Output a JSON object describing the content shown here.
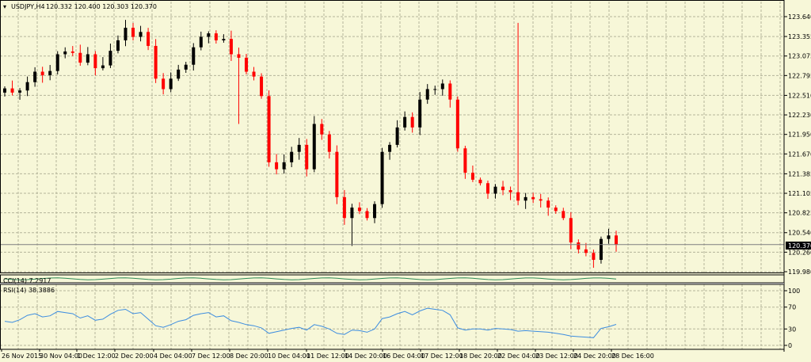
{
  "colors": {
    "background": "#f7f7d8",
    "grid": "#b5b59a",
    "axis": "#000000",
    "bull": "#000000",
    "bear": "#ff0000",
    "wick": "#000000",
    "rsi_line": "#3d8de0",
    "cci_line": "#2e8b57",
    "price_line": "#7f7f7f",
    "price_label_bg": "#000000",
    "price_label_fg": "#ffffff"
  },
  "header": {
    "title": "USDJPY,H4",
    "ohlc": "120.332 120.400 120.303 120.370"
  },
  "price_axis": {
    "ticks": [
      "123.640",
      "123.355",
      "123.075",
      "122.795",
      "122.510",
      "122.230",
      "121.950",
      "121.670",
      "121.385",
      "121.105",
      "120.825",
      "120.540",
      "120.260",
      "119.980"
    ],
    "current_price_label": "120.370"
  },
  "cci_panel": {
    "label": "CCI(14) 7.2917",
    "scale_labels": [
      "",
      ""
    ]
  },
  "rsi_panel": {
    "label": "RSI(14) 38.3886",
    "ticks": [
      "100",
      "70",
      "30",
      "0"
    ]
  },
  "time_axis": {
    "labels": [
      "26 Nov 2015",
      "30 Nov 04:00",
      "1 Dec 12:00",
      "2 Dec 20:00",
      "4 Dec 04:00",
      "7 Dec 12:00",
      "8 Dec 20:00",
      "10 Dec 04:00",
      "11 Dec 12:00",
      "14 Dec 20:00",
      "16 Dec 04:00",
      "17 Dec 12:00",
      "18 Dec 20:00",
      "22 Dec 04:00",
      "23 Dec 12:00",
      "24 Dec 20:00",
      "28 Dec 16:00"
    ]
  },
  "chart_data": {
    "type": "candlestick",
    "symbol": "USDJPY",
    "timeframe": "H4",
    "ylim": [
      119.98,
      123.64
    ],
    "closes": [
      122.61,
      122.55,
      122.58,
      122.7,
      122.85,
      122.8,
      122.86,
      123.1,
      123.14,
      123.12,
      122.98,
      123.1,
      122.9,
      122.94,
      123.15,
      123.3,
      123.48,
      123.35,
      123.42,
      123.22,
      122.75,
      122.6,
      122.75,
      122.88,
      122.95,
      123.2,
      123.35,
      123.4,
      123.3,
      123.32,
      123.1,
      123.05,
      122.85,
      122.78,
      122.5,
      121.55,
      121.45,
      121.55,
      121.7,
      121.8,
      121.45,
      122.1,
      121.95,
      121.7,
      121.05,
      120.75,
      120.9,
      120.85,
      120.75,
      120.95,
      121.7,
      121.8,
      122.05,
      122.2,
      122.05,
      122.45,
      122.6,
      122.6,
      122.68,
      122.45,
      121.75,
      121.4,
      121.3,
      121.25,
      121.1,
      121.2,
      121.15,
      121.12,
      121.0,
      121.05,
      121.02,
      121.0,
      120.9,
      120.85,
      120.75,
      120.4,
      120.3,
      120.25,
      120.15,
      120.45,
      120.5,
      120.37
    ],
    "rsi": [
      44,
      42,
      47,
      55,
      58,
      52,
      54,
      62,
      60,
      58,
      50,
      54,
      46,
      48,
      57,
      64,
      66,
      58,
      60,
      48,
      36,
      33,
      38,
      44,
      47,
      55,
      58,
      60,
      52,
      54,
      45,
      42,
      38,
      36,
      32,
      22,
      25,
      28,
      31,
      33,
      28,
      38,
      35,
      30,
      22,
      20,
      28,
      27,
      24,
      30,
      49,
      52,
      58,
      62,
      56,
      63,
      68,
      66,
      64,
      56,
      32,
      28,
      30,
      30,
      28,
      31,
      30,
      29,
      26,
      27,
      26,
      25,
      24,
      22,
      20,
      17,
      16,
      15,
      14,
      31,
      34,
      38.3886
    ],
    "cci": [
      7.2917
    ]
  }
}
